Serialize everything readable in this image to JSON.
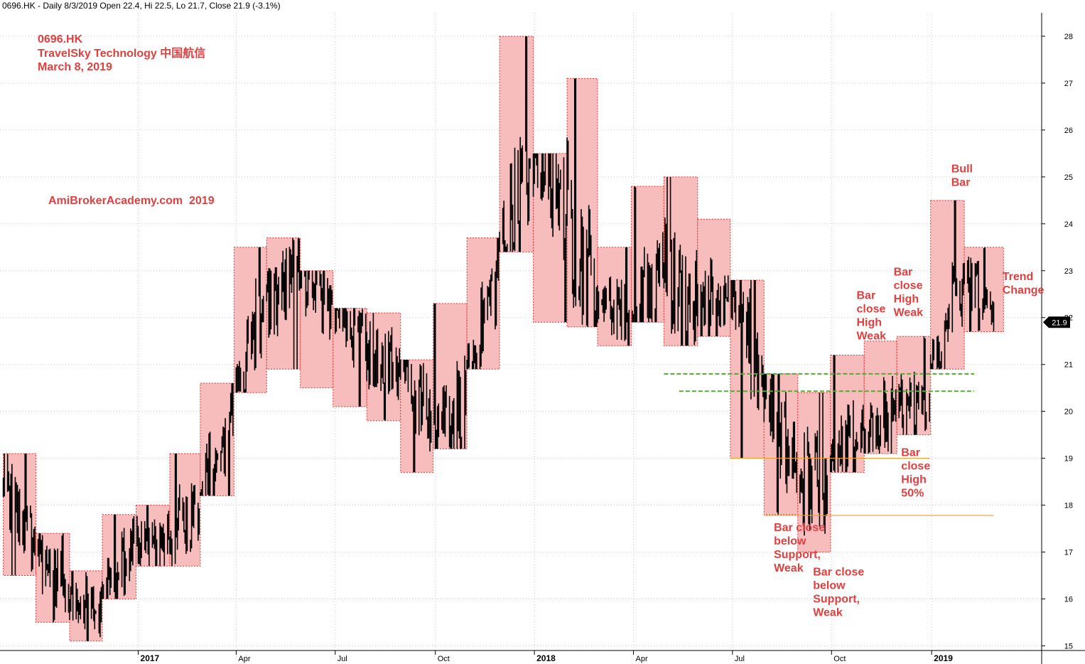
{
  "header": {
    "text": "0696.HK - Daily 8/3/2019 Open 22.4, Hi 22.5, Lo 21.7, Close 21.9 (-3.1%)"
  },
  "colors": {
    "box_fill": "#f7bcbc",
    "box_border": "#e03030",
    "annotation": "#e04040",
    "grid": "#c8c8c8",
    "candle": "#000000",
    "support": "#e8a030",
    "resistance": "#55aa33"
  },
  "chart_data": {
    "type": "line",
    "title_lines": [
      "0696.HK",
      "TravelSky Technology 中国航信",
      "March 8, 2019"
    ],
    "watermark": "AmiBrokerAcademy.com  2019",
    "y_ticks": [
      15,
      16,
      17,
      18,
      19,
      20,
      21,
      22,
      23,
      24,
      25,
      26,
      27,
      28
    ],
    "ylim": [
      14.9,
      28.5
    ],
    "x_ticks": [
      {
        "label": "2017",
        "date": "2017-01-03",
        "year": true
      },
      {
        "label": "Apr",
        "date": "2017-04-03",
        "year": false
      },
      {
        "label": "Jul",
        "date": "2017-07-03",
        "year": false
      },
      {
        "label": "Oct",
        "date": "2017-10-03",
        "year": false
      },
      {
        "label": "2018",
        "date": "2018-01-02",
        "year": true
      },
      {
        "label": "Apr",
        "date": "2018-04-03",
        "year": false
      },
      {
        "label": "Jul",
        "date": "2018-07-03",
        "year": false
      },
      {
        "label": "Oct",
        "date": "2018-10-02",
        "year": false
      },
      {
        "label": "2019",
        "date": "2019-01-02",
        "year": true
      }
    ],
    "x_range": [
      "2016-08-29",
      "2019-05-02"
    ],
    "grid": true,
    "last_value": 21.9,
    "last_value_label": "21.9",
    "monthly_bars": [
      {
        "month": "2016-09",
        "high": 19.1,
        "low": 16.5,
        "close": 17.0
      },
      {
        "month": "2016-10",
        "high": 17.4,
        "low": 15.5,
        "close": 16.0
      },
      {
        "month": "2016-11",
        "high": 16.6,
        "low": 15.1,
        "close": 15.7
      },
      {
        "month": "2016-12",
        "high": 17.8,
        "low": 16.0,
        "close": 17.2
      },
      {
        "month": "2017-01",
        "high": 18.0,
        "low": 16.7,
        "close": 17.3
      },
      {
        "month": "2017-02",
        "high": 19.1,
        "low": 16.7,
        "close": 17.9
      },
      {
        "month": "2017-03",
        "high": 20.6,
        "low": 18.2,
        "close": 19.8
      },
      {
        "month": "2017-04",
        "high": 23.5,
        "low": 20.4,
        "close": 22.4
      },
      {
        "month": "2017-05",
        "high": 23.7,
        "low": 20.9,
        "close": 22.7
      },
      {
        "month": "2017-06",
        "high": 23.0,
        "low": 20.5,
        "close": 22.3
      },
      {
        "month": "2017-07",
        "high": 22.2,
        "low": 20.1,
        "close": 21.4
      },
      {
        "month": "2017-08",
        "high": 22.1,
        "low": 19.8,
        "close": 20.9
      },
      {
        "month": "2017-09",
        "high": 21.1,
        "low": 18.7,
        "close": 19.8
      },
      {
        "month": "2017-10",
        "high": 22.3,
        "low": 19.2,
        "close": 20.2
      },
      {
        "month": "2017-11",
        "high": 23.7,
        "low": 20.9,
        "close": 23.0
      },
      {
        "month": "2017-12",
        "high": 28.0,
        "low": 23.4,
        "close": 25.3
      },
      {
        "month": "2018-01",
        "high": 25.5,
        "low": 21.9,
        "close": 24.2
      },
      {
        "month": "2018-02",
        "high": 27.1,
        "low": 21.8,
        "close": 22.4
      },
      {
        "month": "2018-03",
        "high": 23.5,
        "low": 21.4,
        "close": 22.0
      },
      {
        "month": "2018-04",
        "high": 24.8,
        "low": 21.9,
        "close": 22.9
      },
      {
        "month": "2018-05",
        "high": 25.0,
        "low": 21.4,
        "close": 22.1
      },
      {
        "month": "2018-06",
        "high": 24.1,
        "low": 21.6,
        "close": 22.8
      },
      {
        "month": "2018-07",
        "high": 22.8,
        "low": 19.0,
        "close": 20.7
      },
      {
        "month": "2018-08",
        "high": 20.8,
        "low": 17.8,
        "close": 18.6
      },
      {
        "month": "2018-09",
        "high": 20.4,
        "low": 17.0,
        "close": 18.5
      },
      {
        "month": "2018-10",
        "high": 21.2,
        "low": 18.7,
        "close": 19.6
      },
      {
        "month": "2018-11",
        "high": 21.5,
        "low": 19.1,
        "close": 20.1
      },
      {
        "month": "2018-12",
        "high": 21.6,
        "low": 19.5,
        "close": 20.2
      },
      {
        "month": "2019-01",
        "high": 24.5,
        "low": 20.9,
        "close": 23.0
      },
      {
        "month": "2019-02",
        "high": 23.5,
        "low": 21.7,
        "close": 21.9
      }
    ],
    "horizontal_lines": [
      {
        "style": "support",
        "y": 19.0,
        "from": "2018-07-01",
        "to": "2018-12-31"
      },
      {
        "style": "support",
        "y": 17.78,
        "from": "2018-08-01",
        "to": "2019-02-28"
      },
      {
        "style": "resistance",
        "y": 20.8,
        "from": "2018-05-01",
        "to": "2019-02-10"
      },
      {
        "style": "resistance",
        "y": 20.43,
        "from": "2018-05-15",
        "to": "2019-02-10"
      }
    ],
    "annotations": [
      {
        "lines": [
          "Bar close",
          "below",
          "Support,",
          "Weak"
        ],
        "date": "2018-08-10",
        "y": 17.45
      },
      {
        "lines": [
          "Bar close",
          "below",
          "Support,",
          "Weak"
        ],
        "date": "2018-09-15",
        "y": 16.5
      },
      {
        "lines": [
          "Bar",
          "close",
          "High",
          "Weak"
        ],
        "date": "2018-10-25",
        "y": 22.4
      },
      {
        "lines": [
          "Bar",
          "close",
          "High",
          "Weak"
        ],
        "date": "2018-11-28",
        "y": 22.9
      },
      {
        "lines": [
          "Bar",
          "close",
          "High",
          "50%"
        ],
        "date": "2018-12-05",
        "y": 19.05
      },
      {
        "lines": [
          "Bull",
          "Bar"
        ],
        "date": "2019-01-20",
        "y": 25.1
      },
      {
        "lines": [
          "Trend",
          "Change"
        ],
        "date": "2019-03-08",
        "y": 22.8
      }
    ]
  }
}
